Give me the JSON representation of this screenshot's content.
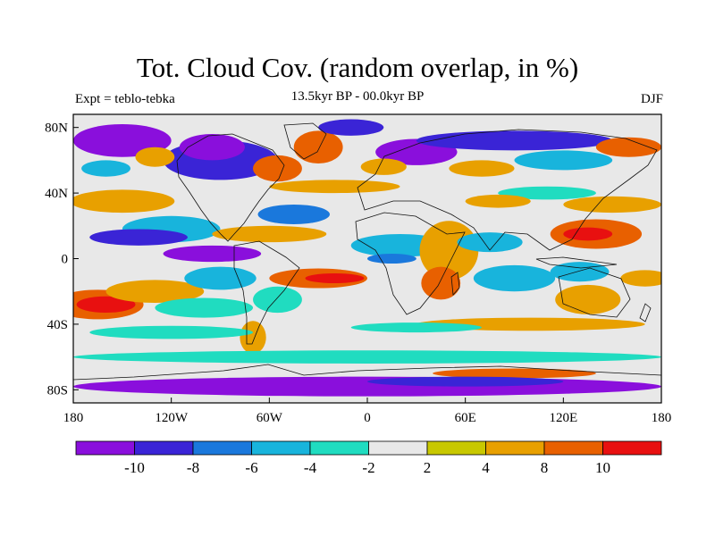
{
  "title": "Tot. Cloud Cov. (random overlap, in %)",
  "subtitle_left": "Expt = teblo-tebka",
  "subtitle_center": "13.5kyr BP - 00.0kyr BP",
  "subtitle_right": "DJF",
  "y_ticks": [
    {
      "lat": 80,
      "label": "80N"
    },
    {
      "lat": 40,
      "label": "40N"
    },
    {
      "lat": 0,
      "label": "0"
    },
    {
      "lat": -40,
      "label": "40S"
    },
    {
      "lat": -80,
      "label": "80S"
    }
  ],
  "x_ticks": [
    {
      "lon": -180,
      "label": "180"
    },
    {
      "lon": -120,
      "label": "120W"
    },
    {
      "lon": -60,
      "label": "60W"
    },
    {
      "lon": 0,
      "label": "0"
    },
    {
      "lon": 60,
      "label": "60E"
    },
    {
      "lon": 120,
      "label": "120E"
    },
    {
      "lon": 180,
      "label": "180"
    }
  ],
  "colorbar": {
    "colors": [
      "#8a0fdc",
      "#3a24d6",
      "#1a78dc",
      "#18b4dc",
      "#20dcc0",
      "#e8e8e8",
      "#c8c800",
      "#e8a000",
      "#e86000",
      "#e81010"
    ],
    "labels": [
      {
        "index": 1,
        "text": "-10"
      },
      {
        "index": 2,
        "text": "-8"
      },
      {
        "index": 3,
        "text": "-6"
      },
      {
        "index": 4,
        "text": "-4"
      },
      {
        "index": 5,
        "text": "-2"
      },
      {
        "index": 6,
        "text": "2"
      },
      {
        "index": 7,
        "text": "4"
      },
      {
        "index": 8,
        "text": "8"
      },
      {
        "index": 9,
        "text": "10"
      }
    ]
  },
  "background_color": "#e8e8e8",
  "anomaly_regions": [
    {
      "lon": -165,
      "lat": -28,
      "rx": 28,
      "ry": 9,
      "color": "#e86000"
    },
    {
      "lon": -160,
      "lat": -28,
      "rx": 18,
      "ry": 5,
      "color": "#e81010"
    },
    {
      "lon": -130,
      "lat": -20,
      "rx": 30,
      "ry": 7,
      "color": "#e8a000"
    },
    {
      "lon": -120,
      "lat": 18,
      "rx": 30,
      "ry": 8,
      "color": "#18b4dc"
    },
    {
      "lon": -140,
      "lat": 13,
      "rx": 30,
      "ry": 5,
      "color": "#3a24d6"
    },
    {
      "lon": -150,
      "lat": 35,
      "rx": 32,
      "ry": 7,
      "color": "#e8a000"
    },
    {
      "lon": -95,
      "lat": 3,
      "rx": 30,
      "ry": 5,
      "color": "#8a0fdc"
    },
    {
      "lon": -90,
      "lat": -12,
      "rx": 22,
      "ry": 7,
      "color": "#18b4dc"
    },
    {
      "lon": -100,
      "lat": -30,
      "rx": 30,
      "ry": 6,
      "color": "#20dcc0"
    },
    {
      "lon": -30,
      "lat": -12,
      "rx": 30,
      "ry": 6,
      "color": "#e86000"
    },
    {
      "lon": -20,
      "lat": -12,
      "rx": 18,
      "ry": 3,
      "color": "#e81010"
    },
    {
      "lon": -55,
      "lat": -25,
      "rx": 15,
      "ry": 8,
      "color": "#20dcc0"
    },
    {
      "lon": -45,
      "lat": 27,
      "rx": 22,
      "ry": 6,
      "color": "#1a78dc"
    },
    {
      "lon": -60,
      "lat": 15,
      "rx": 35,
      "ry": 5,
      "color": "#e8a000"
    },
    {
      "lon": -70,
      "lat": -48,
      "rx": 8,
      "ry": 10,
      "color": "#e8a000"
    },
    {
      "lon": 20,
      "lat": 8,
      "rx": 30,
      "ry": 7,
      "color": "#18b4dc"
    },
    {
      "lon": 15,
      "lat": 0,
      "rx": 15,
      "ry": 3,
      "color": "#1a78dc"
    },
    {
      "lon": 50,
      "lat": 5,
      "rx": 18,
      "ry": 18,
      "color": "#e8a000"
    },
    {
      "lon": 45,
      "lat": -15,
      "rx": 12,
      "ry": 10,
      "color": "#e86000"
    },
    {
      "lon": 90,
      "lat": -12,
      "rx": 25,
      "ry": 8,
      "color": "#18b4dc"
    },
    {
      "lon": 75,
      "lat": 10,
      "rx": 20,
      "ry": 6,
      "color": "#18b4dc"
    },
    {
      "lon": 140,
      "lat": 15,
      "rx": 28,
      "ry": 9,
      "color": "#e86000"
    },
    {
      "lon": 135,
      "lat": 15,
      "rx": 15,
      "ry": 4,
      "color": "#e81010"
    },
    {
      "lon": 150,
      "lat": 33,
      "rx": 30,
      "ry": 5,
      "color": "#e8a000"
    },
    {
      "lon": 130,
      "lat": -8,
      "rx": 18,
      "ry": 6,
      "color": "#18b4dc"
    },
    {
      "lon": 135,
      "lat": -25,
      "rx": 20,
      "ry": 9,
      "color": "#e8a000"
    },
    {
      "lon": 170,
      "lat": -12,
      "rx": 15,
      "ry": 5,
      "color": "#e8a000"
    },
    {
      "lon": 100,
      "lat": -40,
      "rx": 70,
      "ry": 4,
      "color": "#e8a000"
    },
    {
      "lon": -120,
      "lat": -45,
      "rx": 50,
      "ry": 4,
      "color": "#20dcc0"
    },
    {
      "lon": 30,
      "lat": -42,
      "rx": 40,
      "ry": 3,
      "color": "#20dcc0"
    },
    {
      "lon": 0,
      "lat": -60,
      "rx": 180,
      "ry": 4,
      "color": "#20dcc0"
    },
    {
      "lon": 90,
      "lat": -70,
      "rx": 50,
      "ry": 3,
      "color": "#e86000"
    },
    {
      "lon": 0,
      "lat": -78,
      "rx": 180,
      "ry": 6,
      "color": "#8a0fdc"
    },
    {
      "lon": 60,
      "lat": -75,
      "rx": 60,
      "ry": 3,
      "color": "#3a24d6"
    },
    {
      "lon": -20,
      "lat": 44,
      "rx": 40,
      "ry": 4,
      "color": "#e8a000"
    },
    {
      "lon": -90,
      "lat": 60,
      "rx": 35,
      "ry": 12,
      "color": "#3a24d6"
    },
    {
      "lon": -95,
      "lat": 68,
      "rx": 20,
      "ry": 8,
      "color": "#8a0fdc"
    },
    {
      "lon": -55,
      "lat": 55,
      "rx": 15,
      "ry": 8,
      "color": "#e86000"
    },
    {
      "lon": -150,
      "lat": 72,
      "rx": 30,
      "ry": 10,
      "color": "#8a0fdc"
    },
    {
      "lon": -130,
      "lat": 62,
      "rx": 12,
      "ry": 6,
      "color": "#e8a000"
    },
    {
      "lon": -30,
      "lat": 68,
      "rx": 15,
      "ry": 10,
      "color": "#e86000"
    },
    {
      "lon": -10,
      "lat": 80,
      "rx": 20,
      "ry": 5,
      "color": "#3a24d6"
    },
    {
      "lon": 30,
      "lat": 65,
      "rx": 25,
      "ry": 8,
      "color": "#8a0fdc"
    },
    {
      "lon": 10,
      "lat": 56,
      "rx": 14,
      "ry": 5,
      "color": "#e8a000"
    },
    {
      "lon": 90,
      "lat": 72,
      "rx": 60,
      "ry": 6,
      "color": "#3a24d6"
    },
    {
      "lon": 120,
      "lat": 60,
      "rx": 30,
      "ry": 6,
      "color": "#18b4dc"
    },
    {
      "lon": 70,
      "lat": 55,
      "rx": 20,
      "ry": 5,
      "color": "#e8a000"
    },
    {
      "lon": 160,
      "lat": 68,
      "rx": 20,
      "ry": 6,
      "color": "#e86000"
    },
    {
      "lon": 110,
      "lat": 40,
      "rx": 30,
      "ry": 4,
      "color": "#20dcc0"
    },
    {
      "lon": 80,
      "lat": 35,
      "rx": 20,
      "ry": 4,
      "color": "#e8a000"
    },
    {
      "lon": -160,
      "lat": 55,
      "rx": 15,
      "ry": 5,
      "color": "#18b4dc"
    }
  ]
}
